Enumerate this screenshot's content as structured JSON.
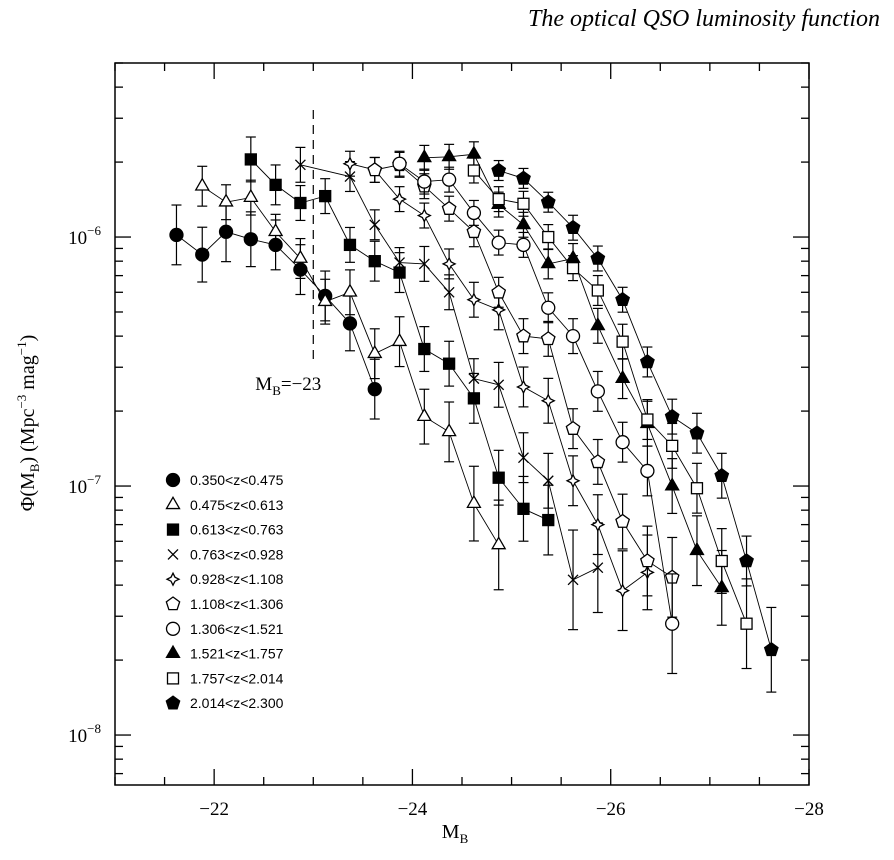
{
  "header": {
    "title": "The optical QSO luminosity function"
  },
  "chart_data": {
    "type": "scatter",
    "xlabel": "M_B",
    "ylabel": "Φ(M_B) (Mpc⁻³ mag⁻¹)",
    "xlim": [
      -21,
      -28
    ],
    "ylim": [
      6.3e-09,
      5e-06
    ],
    "yscale": "log",
    "x_ticks": [
      {
        "value": -22,
        "label": "−22"
      },
      {
        "value": -24,
        "label": "−24"
      },
      {
        "value": -26,
        "label": "−26"
      },
      {
        "value": -28,
        "label": "−28"
      }
    ],
    "y_ticks": [
      {
        "value": 1e-06,
        "label_base": "10",
        "label_exp": "−6"
      },
      {
        "value": 1e-07,
        "label_base": "10",
        "label_exp": "−7"
      },
      {
        "value": 1e-08,
        "label_base": "10",
        "label_exp": "−8"
      }
    ],
    "annotation": {
      "text": "M_B=−23",
      "x": -23
    },
    "series": [
      {
        "name": "0.350<z<0.475",
        "marker": "filled-circle",
        "points": [
          [
            -21.62,
            1.02e-06,
            0.12
          ],
          [
            -21.88,
            8.5e-07,
            0.11
          ],
          [
            -22.12,
            1.05e-06,
            0.12
          ],
          [
            -22.37,
            9.8e-07,
            0.11
          ],
          [
            -22.62,
            9.3e-07,
            0.1
          ],
          [
            -22.87,
            7.4e-07,
            0.1
          ],
          [
            -23.12,
            5.8e-07,
            0.1
          ],
          [
            -23.37,
            4.5e-07,
            0.11
          ],
          [
            -23.62,
            2.45e-07,
            0.12
          ]
        ]
      },
      {
        "name": "0.475<z<0.613",
        "marker": "open-triangle",
        "points": [
          [
            -21.88,
            1.6e-06,
            0.08
          ],
          [
            -22.12,
            1.38e-06,
            0.07
          ],
          [
            -22.37,
            1.44e-06,
            0.07
          ],
          [
            -22.62,
            1.05e-06,
            0.07
          ],
          [
            -22.87,
            8.2e-07,
            0.08
          ],
          [
            -23.12,
            5.5e-07,
            0.09
          ],
          [
            -23.37,
            6e-07,
            0.09
          ],
          [
            -23.62,
            3.4e-07,
            0.1
          ],
          [
            -23.87,
            3.8e-07,
            0.1
          ],
          [
            -24.12,
            1.9e-07,
            0.11
          ],
          [
            -24.37,
            1.65e-07,
            0.12
          ],
          [
            -24.62,
            8.5e-08,
            0.15
          ],
          [
            -24.87,
            5.8e-08,
            0.18
          ]
        ]
      },
      {
        "name": "0.613<z<0.763",
        "marker": "filled-square",
        "points": [
          [
            -22.37,
            2.05e-06,
            0.09
          ],
          [
            -22.62,
            1.62e-06,
            0.08
          ],
          [
            -22.87,
            1.37e-06,
            0.07
          ],
          [
            -23.12,
            1.46e-06,
            0.07
          ],
          [
            -23.37,
            9.3e-07,
            0.07
          ],
          [
            -23.62,
            8e-07,
            0.08
          ],
          [
            -23.87,
            7.2e-07,
            0.08
          ],
          [
            -24.12,
            3.55e-07,
            0.09
          ],
          [
            -24.37,
            3.1e-07,
            0.09
          ],
          [
            -24.62,
            2.25e-07,
            0.1
          ],
          [
            -24.87,
            1.08e-07,
            0.11
          ],
          [
            -25.12,
            8.1e-08,
            0.13
          ],
          [
            -25.37,
            7.3e-08,
            0.14
          ]
        ]
      },
      {
        "name": "0.763<z<0.928",
        "marker": "cross",
        "points": [
          [
            -22.87,
            1.95e-06,
            0.07
          ],
          [
            -23.37,
            1.75e-06,
            0.06
          ],
          [
            -23.62,
            1.12e-06,
            0.06
          ],
          [
            -23.87,
            7.9e-07,
            0.06
          ],
          [
            -24.12,
            7.8e-07,
            0.07
          ],
          [
            -24.37,
            6e-07,
            0.07
          ],
          [
            -24.62,
            2.7e-07,
            0.08
          ],
          [
            -24.87,
            2.55e-07,
            0.09
          ],
          [
            -25.12,
            1.3e-07,
            0.1
          ],
          [
            -25.37,
            1.05e-07,
            0.11
          ],
          [
            -25.62,
            4.2e-08,
            0.2
          ],
          [
            -25.87,
            4.7e-08,
            0.18
          ]
        ]
      },
      {
        "name": "0.928<z<1.108",
        "marker": "star4",
        "points": [
          [
            -23.37,
            1.97e-06,
            0.05
          ],
          [
            -23.62,
            1.86e-06,
            0.05
          ],
          [
            -23.87,
            1.42e-06,
            0.05
          ],
          [
            -24.12,
            1.22e-06,
            0.05
          ],
          [
            -24.37,
            7.8e-07,
            0.06
          ],
          [
            -24.62,
            5.6e-07,
            0.07
          ],
          [
            -24.87,
            5.1e-07,
            0.08
          ],
          [
            -25.12,
            2.5e-07,
            0.08
          ],
          [
            -25.37,
            2.2e-07,
            0.09
          ],
          [
            -25.62,
            1.05e-07,
            0.1
          ],
          [
            -25.87,
            7e-08,
            0.12
          ],
          [
            -26.12,
            3.8e-08,
            0.16
          ],
          [
            -26.37,
            4.5e-08,
            0.15
          ]
        ]
      },
      {
        "name": "1.108<z<1.306",
        "marker": "open-pentagon",
        "points": [
          [
            -23.62,
            1.86e-06,
            0.05
          ],
          [
            -23.87,
            1.95e-06,
            0.05
          ],
          [
            -24.12,
            1.6e-06,
            0.05
          ],
          [
            -24.37,
            1.3e-06,
            0.05
          ],
          [
            -24.62,
            1.05e-06,
            0.06
          ],
          [
            -24.87,
            6e-07,
            0.06
          ],
          [
            -25.12,
            4e-07,
            0.07
          ],
          [
            -25.37,
            3.9e-07,
            0.07
          ],
          [
            -25.62,
            1.7e-07,
            0.08
          ],
          [
            -25.87,
            1.25e-07,
            0.09
          ],
          [
            -26.12,
            7.2e-08,
            0.11
          ],
          [
            -26.37,
            5e-08,
            0.14
          ],
          [
            -26.62,
            4.3e-08,
            0.16
          ]
        ]
      },
      {
        "name": "1.306<z<1.521",
        "marker": "open-circle",
        "points": [
          [
            -23.87,
            1.97e-06,
            0.05
          ],
          [
            -24.12,
            1.67e-06,
            0.05
          ],
          [
            -24.37,
            1.7e-06,
            0.05
          ],
          [
            -24.62,
            1.25e-06,
            0.05
          ],
          [
            -24.87,
            9.5e-07,
            0.05
          ],
          [
            -25.12,
            9.3e-07,
            0.05
          ],
          [
            -25.37,
            5.2e-07,
            0.06
          ],
          [
            -25.62,
            4e-07,
            0.07
          ],
          [
            -25.87,
            2.4e-07,
            0.08
          ],
          [
            -26.12,
            1.5e-07,
            0.08
          ],
          [
            -26.37,
            1.15e-07,
            0.1
          ],
          [
            -26.62,
            2.8e-08,
            0.2
          ]
        ]
      },
      {
        "name": "1.521<z<1.757",
        "marker": "filled-triangle",
        "points": [
          [
            -24.12,
            2.08e-06,
            0.05
          ],
          [
            -24.37,
            2.1e-06,
            0.05
          ],
          [
            -24.62,
            2.15e-06,
            0.05
          ],
          [
            -24.87,
            1.35e-06,
            0.05
          ],
          [
            -25.12,
            1.12e-06,
            0.05
          ],
          [
            -25.37,
            7.8e-07,
            0.06
          ],
          [
            -25.62,
            8.2e-07,
            0.06
          ],
          [
            -25.87,
            4.4e-07,
            0.07
          ],
          [
            -26.12,
            2.7e-07,
            0.08
          ],
          [
            -26.37,
            1.78e-07,
            0.09
          ],
          [
            -26.62,
            1e-07,
            0.11
          ],
          [
            -26.87,
            5.5e-08,
            0.14
          ],
          [
            -27.12,
            3.9e-08,
            0.15
          ]
        ]
      },
      {
        "name": "1.757<z<2.014",
        "marker": "open-square",
        "points": [
          [
            -24.62,
            1.85e-06,
            0.05
          ],
          [
            -24.87,
            1.42e-06,
            0.05
          ],
          [
            -25.12,
            1.36e-06,
            0.05
          ],
          [
            -25.37,
            1e-06,
            0.05
          ],
          [
            -25.62,
            7.5e-07,
            0.05
          ],
          [
            -25.87,
            6.1e-07,
            0.06
          ],
          [
            -26.12,
            3.8e-07,
            0.07
          ],
          [
            -26.37,
            1.85e-07,
            0.08
          ],
          [
            -26.62,
            1.45e-07,
            0.09
          ],
          [
            -26.87,
            9.8e-08,
            0.1
          ],
          [
            -27.12,
            5e-08,
            0.13
          ],
          [
            -27.37,
            2.8e-08,
            0.18
          ]
        ]
      },
      {
        "name": "2.014<z<2.300",
        "marker": "filled-pentagon",
        "points": [
          [
            -24.87,
            1.85e-06,
            0.04
          ],
          [
            -25.12,
            1.72e-06,
            0.04
          ],
          [
            -25.37,
            1.38e-06,
            0.04
          ],
          [
            -25.62,
            1.09e-06,
            0.05
          ],
          [
            -25.87,
            8.2e-07,
            0.05
          ],
          [
            -26.12,
            5.6e-07,
            0.05
          ],
          [
            -26.37,
            3.15e-07,
            0.06
          ],
          [
            -26.62,
            1.9e-07,
            0.07
          ],
          [
            -26.87,
            1.63e-07,
            0.08
          ],
          [
            -27.12,
            1.1e-07,
            0.09
          ],
          [
            -27.37,
            5e-08,
            0.1
          ],
          [
            -27.62,
            2.2e-08,
            0.17
          ]
        ]
      }
    ]
  }
}
